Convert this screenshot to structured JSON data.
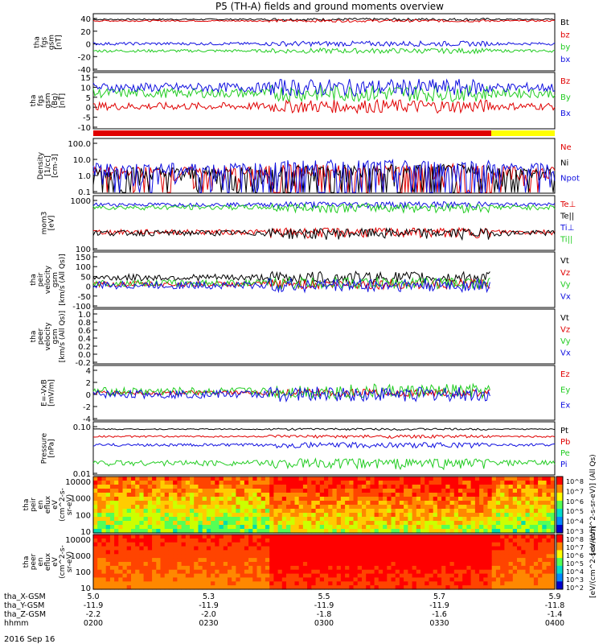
{
  "title": "P5 (TH-A) fields and ground moments overview",
  "colors": {
    "black": "#000000",
    "red": "#e00000",
    "green": "#22cc22",
    "blue": "#1010e0",
    "yellow": "#ffff00"
  },
  "ephemeris": {
    "rows": [
      {
        "label": "tha_X-GSM",
        "values": [
          "5.0",
          "5.3",
          "5.5",
          "5.7",
          "5.9"
        ]
      },
      {
        "label": "tha_Y-GSM",
        "values": [
          "-11.9",
          "-11.9",
          "-11.9",
          "-11.9",
          "-11.8"
        ]
      },
      {
        "label": "tha_Z-GSM",
        "values": [
          "-2.2",
          "-2.0",
          "-1.8",
          "-1.6",
          "-1.4"
        ]
      },
      {
        "label": "hhmm",
        "values": [
          "0200",
          "0230",
          "0300",
          "0330",
          "0400"
        ]
      }
    ],
    "date": "2016 Sep 16"
  },
  "chart_data": [
    {
      "type": "line",
      "ylabel": [
        "tha",
        "fgs",
        "gsm",
        "[nT]"
      ],
      "ylim": [
        -40,
        40
      ],
      "ticks": [
        "40",
        "20",
        "0",
        "-20",
        "-40"
      ],
      "series": [
        {
          "name": "Bt",
          "color": "black",
          "base": 32,
          "amp": 2
        },
        {
          "name": "bz",
          "color": "red",
          "base": 30,
          "amp": 2
        },
        {
          "name": "by",
          "color": "green",
          "base": -12,
          "amp": 4
        },
        {
          "name": "bx",
          "color": "blue",
          "base": -2,
          "amp": 4
        }
      ]
    },
    {
      "type": "line",
      "ylabel": [
        "tha",
        "fgs",
        "gsm",
        "(Bg)",
        "[nT]"
      ],
      "ylim": [
        -15,
        15
      ],
      "ticks": [
        "15",
        "10",
        "5",
        "0",
        "-5",
        "-10"
      ],
      "series": [
        {
          "name": "Bz",
          "color": "red",
          "base": -3,
          "amp": 4
        },
        {
          "name": "By",
          "color": "green",
          "base": 4,
          "amp": 5
        },
        {
          "name": "Bx",
          "color": "blue",
          "base": 7,
          "amp": 5
        }
      ]
    },
    {
      "type": "line",
      "scale": "log",
      "ylabel": [
        "Density",
        "[1/cc]",
        "[cm-3]"
      ],
      "ylim": [
        0.1,
        100
      ],
      "ticks": [
        "100.0",
        "10.0",
        "1.0",
        "0.1"
      ],
      "series": [
        {
          "name": "Ne",
          "color": "red",
          "base": 1.3,
          "amp": 3
        },
        {
          "name": "Ni",
          "color": "black",
          "base": 1.2,
          "amp": 3
        },
        {
          "name": "Npot",
          "color": "blue",
          "base": 2.0,
          "amp": 5
        }
      ]
    },
    {
      "type": "line",
      "scale": "log",
      "ylabel": [
        "mom3",
        "[eV]"
      ],
      "ylim": [
        20,
        4000
      ],
      "ticks": [
        "1000",
        "100"
      ],
      "series": [
        {
          "name": "Te⊥",
          "color": "red",
          "base": 120,
          "amp": 60
        },
        {
          "name": "Te||",
          "color": "black",
          "base": 110,
          "amp": 60
        },
        {
          "name": "Ti⊥",
          "color": "blue",
          "base": 1700,
          "amp": 600
        },
        {
          "name": "Ti||",
          "color": "green",
          "base": 1300,
          "amp": 600
        }
      ]
    },
    {
      "type": "line",
      "ylabel": [
        "tha",
        "peir",
        "velocity",
        "gsm",
        "[km/s (All Qs)]"
      ],
      "ylim": [
        -100,
        150
      ],
      "ticks": [
        "150",
        "100",
        "50",
        "0",
        "-50",
        "-100"
      ],
      "series": [
        {
          "name": "Vt",
          "color": "black",
          "base": 35,
          "amp": 30
        },
        {
          "name": "Vz",
          "color": "red",
          "base": 5,
          "amp": 25
        },
        {
          "name": "Vy",
          "color": "green",
          "base": 10,
          "amp": 30
        },
        {
          "name": "Vx",
          "color": "blue",
          "base": 0,
          "amp": 35
        }
      ]
    },
    {
      "type": "line",
      "ylabel": [
        "tha",
        "peer",
        "velocity",
        "gsm",
        "[km/s (All Qs)]"
      ],
      "ylim": [
        -0.2,
        1.0
      ],
      "ticks": [
        "1.0",
        "0.8",
        "0.6",
        "0.4",
        "0.2",
        "0.0",
        "-0.2"
      ],
      "series": [
        {
          "name": "Vt",
          "color": "black"
        },
        {
          "name": "Vz",
          "color": "red"
        },
        {
          "name": "Vy",
          "color": "green"
        },
        {
          "name": "Vx",
          "color": "blue"
        }
      ]
    },
    {
      "type": "line",
      "ylabel": [
        "E=-VxB",
        "[mV/m]"
      ],
      "ylim": [
        -4,
        4
      ],
      "ticks": [
        "4",
        "2",
        "0",
        "-2",
        "-4"
      ],
      "series": [
        {
          "name": "Ez",
          "color": "red",
          "base": 0,
          "amp": 0.6
        },
        {
          "name": "Ey",
          "color": "green",
          "base": 0.2,
          "amp": 1.2
        },
        {
          "name": "Ex",
          "color": "blue",
          "base": -0.2,
          "amp": 1.2
        }
      ]
    },
    {
      "type": "line",
      "scale": "log",
      "ylabel": [
        "Pressure",
        "[nPa]"
      ],
      "ylim": [
        0.01,
        1.2
      ],
      "ticks": [
        "0.10",
        "0.01"
      ],
      "series": [
        {
          "name": "Pt",
          "color": "black",
          "base": 0.62,
          "amp": 0.06
        },
        {
          "name": "Pb",
          "color": "red",
          "base": 0.32,
          "amp": 0.05
        },
        {
          "name": "Pe",
          "color": "green",
          "base": 0.03,
          "amp": 0.015
        },
        {
          "name": "Pi",
          "color": "blue",
          "base": 0.15,
          "amp": 0.04
        }
      ]
    },
    {
      "type": "heatmap",
      "ylabel": [
        "tha",
        "peir",
        "en",
        "eflux",
        "eV",
        "(cm^2-s-",
        "sr-eV)"
      ],
      "ticks": [
        "10000",
        "1000",
        "100",
        "10"
      ],
      "colorbar": {
        "label": "[eV/(cm^2-s-sr-eV)] (All Qs)",
        "ticks": [
          "10^8",
          "10^7",
          "10^6",
          "10^5",
          "10^4",
          "10^3"
        ]
      }
    },
    {
      "type": "heatmap",
      "ylabel": [
        "tha",
        "peer",
        "en",
        "eflux",
        "eV",
        "(cm^2-s-",
        "sr-eV)"
      ],
      "ticks": [
        "10000",
        "1000",
        "100",
        "10"
      ],
      "colorbar": {
        "label": "[eV/(cm^2-s-sr-eV)]",
        "ticks": [
          "10^8",
          "10^7",
          "10^6",
          "10^5",
          "10^4",
          "10^3",
          "10^2"
        ]
      }
    }
  ]
}
